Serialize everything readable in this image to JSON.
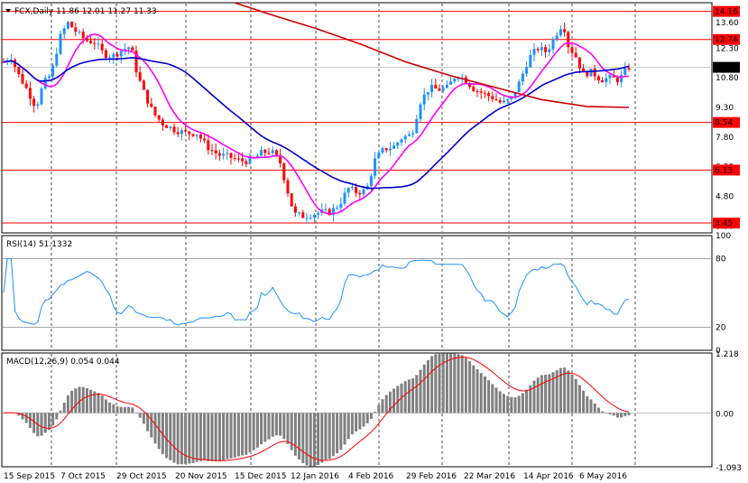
{
  "symbol": "FCX",
  "timeframe": "Daily",
  "ohlc_header": "FCX,Daily  11.86 12.01 11.27 11.33",
  "colors": {
    "bull": "#1e90ff",
    "bear": "#ff0000",
    "ma_fast": "#ff00ff",
    "ma_mid": "#0000cd",
    "ma_slow": "#cc0000",
    "level_line": "#ff0000",
    "macd_hist": "#808080",
    "macd_signal": "#ff0000",
    "rsi_line": "#1e90ff"
  },
  "price_axis": {
    "ticks": [
      "13.60",
      "12.30",
      "10.80",
      "9.30",
      "7.80",
      "6.30",
      "4.80",
      "3.30"
    ],
    "level_labels": [
      "14.16",
      "12.74",
      "8.54",
      "6.13",
      "3.45"
    ],
    "current_label": "11.33"
  },
  "rsi_panel": {
    "label": "RSI(14) 51.1332",
    "axis_ticks": [
      "100",
      "80",
      "20",
      "0"
    ]
  },
  "macd_panel": {
    "label": "MACD(12,26,9) 0.054 0.044",
    "axis_ticks": [
      "1.218",
      "0.00",
      "-1.093"
    ]
  },
  "date_labels": [
    "15 Sep 2015",
    "7 Oct 2015",
    "29 Oct 2015",
    "20 Nov 2015",
    "15 Dec 2015",
    "12 Jan 2016",
    "4 Feb 2016",
    "29 Feb 2016",
    "22 Mar 2016",
    "14 Apr 2016",
    "6 May 2016"
  ],
  "chart_data": {
    "type": "candlestick",
    "title": "FCX,Daily",
    "ohlc_last": {
      "open": 11.86,
      "high": 12.01,
      "low": 11.27,
      "close": 11.33
    },
    "ylim": [
      2.95,
      14.6
    ],
    "horizontal_levels": [
      14.16,
      12.74,
      8.54,
      6.13,
      3.45
    ],
    "series_close_approx": [
      {
        "date": "15 Sep 2015",
        "close": 11.6
      },
      {
        "date": "7 Oct 2015",
        "close": 13.2
      },
      {
        "date": "29 Oct 2015",
        "close": 11.6
      },
      {
        "date": "20 Nov 2015",
        "close": 8.0
      },
      {
        "date": "15 Dec 2015",
        "close": 6.5
      },
      {
        "date": "12 Jan 2016",
        "close": 3.8
      },
      {
        "date": "4 Feb 2016",
        "close": 5.0
      },
      {
        "date": "29 Feb 2016",
        "close": 9.8
      },
      {
        "date": "22 Mar 2016",
        "close": 10.2
      },
      {
        "date": "14 Apr 2016",
        "close": 13.8
      },
      {
        "date": "6 May 2016",
        "close": 10.9
      }
    ],
    "rsi": {
      "period": 14,
      "last": 51.1332,
      "levels": [
        80,
        20
      ],
      "ylim": [
        0,
        100
      ]
    },
    "macd": {
      "fast": 12,
      "slow": 26,
      "signal": 9,
      "macd_last": 0.054,
      "signal_last": 0.044,
      "ylim": [
        -1.093,
        1.218
      ]
    }
  }
}
